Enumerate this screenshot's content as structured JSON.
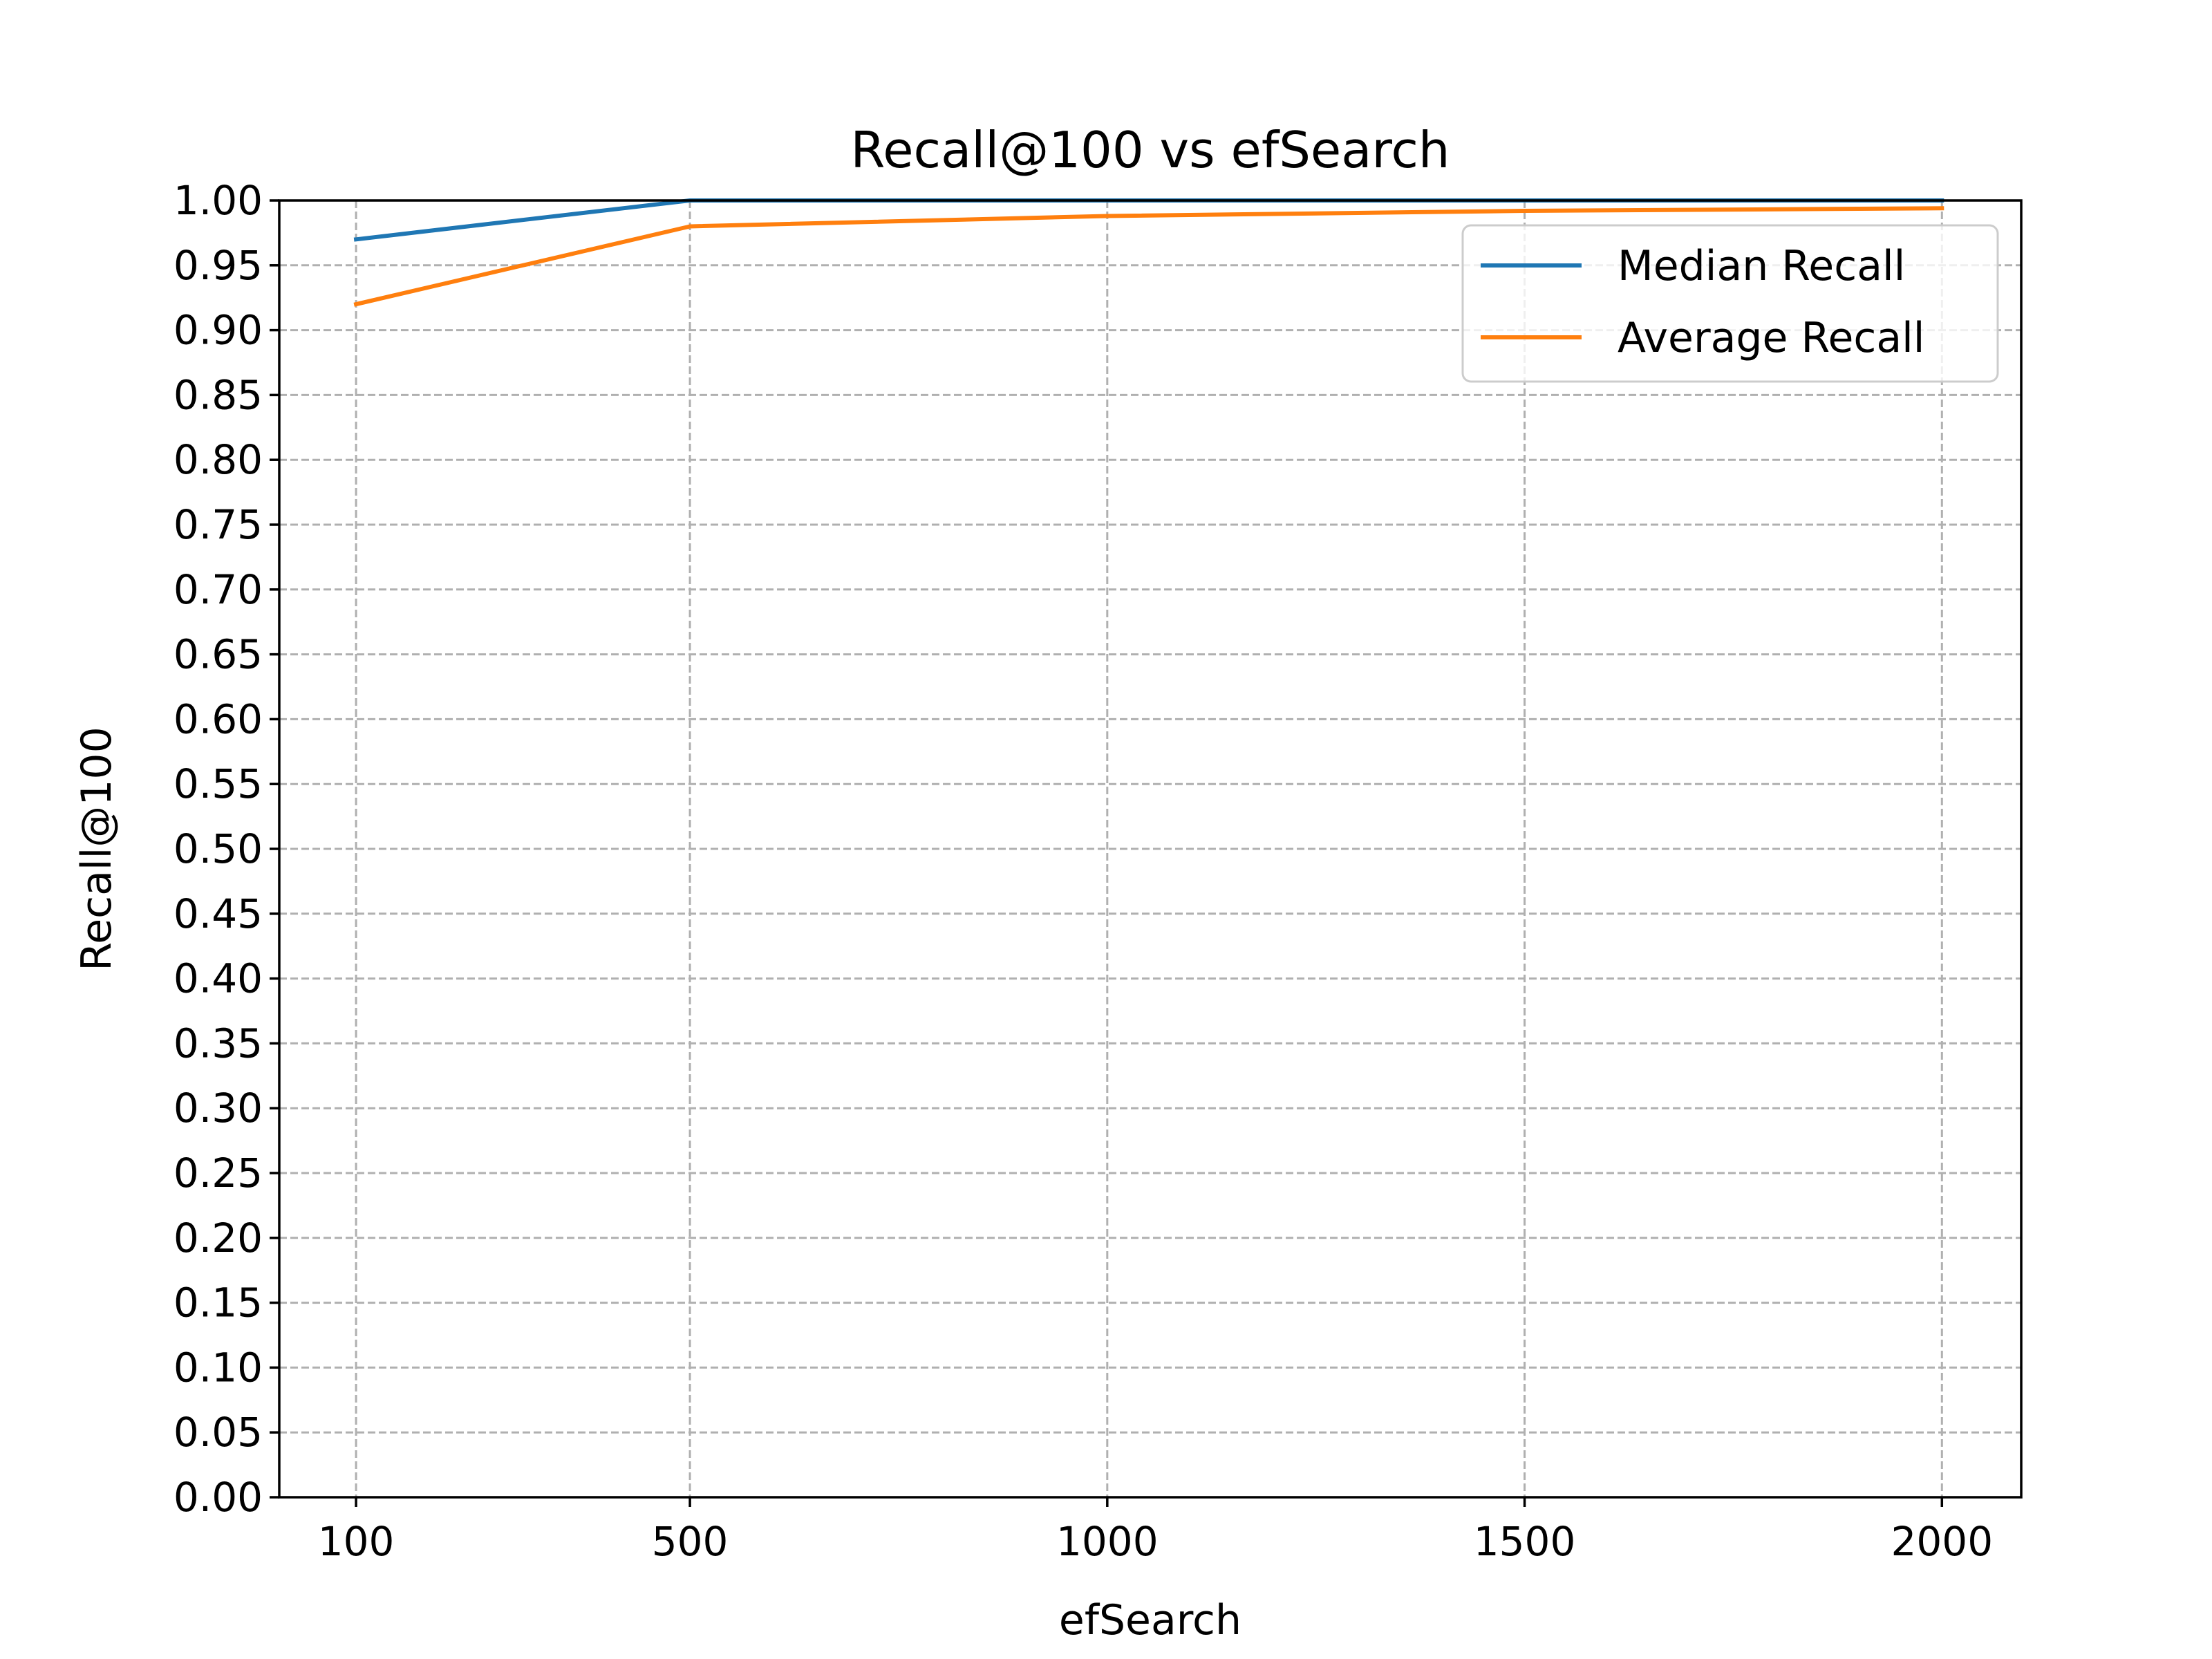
{
  "chart_data": {
    "type": "line",
    "title": "Recall@100 vs efSearch",
    "xlabel": "efSearch",
    "ylabel": "Recall@100",
    "x": [
      100,
      500,
      1000,
      1500,
      2000
    ],
    "xticks": [
      100,
      500,
      1000,
      1500,
      2000
    ],
    "yticks": [
      "0.00",
      "0.05",
      "0.10",
      "0.15",
      "0.20",
      "0.25",
      "0.30",
      "0.35",
      "0.40",
      "0.45",
      "0.50",
      "0.55",
      "0.60",
      "0.65",
      "0.70",
      "0.75",
      "0.80",
      "0.85",
      "0.90",
      "0.95",
      "1.00"
    ],
    "xlim": [
      8,
      2095
    ],
    "ylim": [
      0,
      1
    ],
    "grid": true,
    "legend_position": "upper right",
    "series": [
      {
        "name": "Median Recall",
        "color": "#1f77b4",
        "values": [
          0.97,
          1.0,
          1.0,
          1.0,
          1.0
        ]
      },
      {
        "name": "Average Recall",
        "color": "#ff7f0e",
        "values": [
          0.92,
          0.98,
          0.988,
          0.992,
          0.994
        ]
      }
    ]
  }
}
